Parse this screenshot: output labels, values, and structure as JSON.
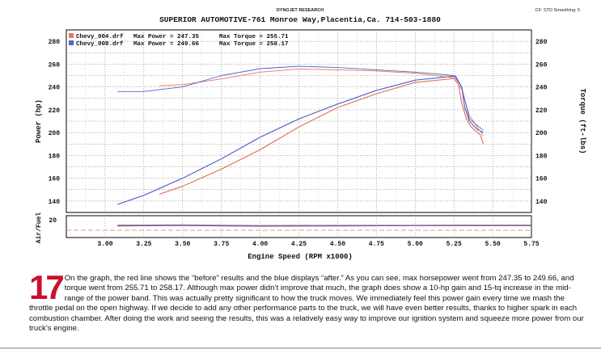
{
  "header": {
    "small_title": "DYNOJET RESEARCH",
    "right_info": "CF: STD   Smoothing: 5",
    "title": "SUPERIOR AUTOMOTIVE-761 Monroe Way,Placentia,Ca. 714-503-1880"
  },
  "legend": [
    {
      "file": "Chevy_004.drf",
      "power_label": "Max Power = 247.35",
      "torque_label": "Max Torque = 255.71",
      "color": "#e07a5f"
    },
    {
      "file": "Chevy_008.drf",
      "power_label": "Max Power = 249.66",
      "torque_label": "Max Torque = 258.17",
      "color": "#5a63c8"
    }
  ],
  "caption": {
    "number": "17",
    "text": "On the graph, the red line shows the “before” results and the blue displays “after.” As you can see, max horsepower went from 247.35 to 249.66, and torque went from 255.71 to 258.17. Although max power didn’t improve that much, the graph does show a 10-hp gain and 15-tq increase in the mid-range of the power band. This was actually pretty significant to how the truck moves. We immediately feel this power gain every time we mash the throttle pedal on the open highway. If we decide to add any other performance parts to the truck, we will have even better results, thanks to higher spark in each combustion chamber. After doing the work and seeing the results, this was a relatively easy way to improve our ignition system and squeeze more power from our truck’s engine."
  },
  "chart_data": {
    "type": "line",
    "xlabel": "Engine Speed (RPM x1000)",
    "ylabel_left": "Power (hp)",
    "ylabel_right": "Torque (ft-lbs)",
    "airfuel_label": "Air/Fuel",
    "airfuel_tick": "20",
    "xlim": [
      2.75,
      5.75
    ],
    "ylim": [
      130,
      290
    ],
    "x_ticks": [
      "3.00",
      "3.25",
      "3.50",
      "3.75",
      "4.00",
      "4.25",
      "4.50",
      "4.75",
      "5.00",
      "5.25",
      "5.50",
      "5.75"
    ],
    "y_ticks": [
      "140",
      "160",
      "180",
      "200",
      "220",
      "240",
      "260",
      "280"
    ],
    "grid": true,
    "series": [
      {
        "name": "Chevy_004.drf",
        "measure": "power",
        "color": "#e07a5f",
        "x": [
          3.35,
          3.5,
          3.75,
          4.0,
          4.25,
          4.5,
          4.75,
          5.0,
          5.15,
          5.25,
          5.28,
          5.3,
          5.33,
          5.36,
          5.42,
          5.44
        ],
        "y": [
          146,
          153,
          168,
          185,
          205,
          222,
          234,
          244,
          246,
          247.35,
          242,
          226,
          212,
          205,
          198,
          190
        ]
      },
      {
        "name": "Chevy_008.drf",
        "measure": "power",
        "color": "#5a63c8",
        "x": [
          3.08,
          3.25,
          3.5,
          3.75,
          4.0,
          4.25,
          4.5,
          4.75,
          5.0,
          5.15,
          5.26,
          5.3,
          5.32,
          5.35,
          5.4,
          5.44
        ],
        "y": [
          137,
          145,
          160,
          177,
          196,
          212,
          225,
          237,
          246,
          248,
          249.66,
          240,
          222,
          210,
          203,
          200
        ]
      },
      {
        "name": "Chevy_004.drf",
        "measure": "torque",
        "color": "#e07a5f",
        "x": [
          3.35,
          3.5,
          3.75,
          4.0,
          4.25,
          4.5,
          4.75,
          5.0,
          5.25,
          5.3,
          5.35,
          5.44
        ],
        "y": [
          241,
          242,
          247,
          253,
          255.71,
          255,
          254,
          252,
          248,
          238,
          215,
          197
        ]
      },
      {
        "name": "Chevy_008.drf",
        "measure": "torque",
        "color": "#5a63c8",
        "x": [
          3.08,
          3.25,
          3.5,
          3.75,
          4.0,
          4.25,
          4.5,
          4.75,
          5.0,
          5.25,
          5.3,
          5.35,
          5.44
        ],
        "y": [
          236,
          236,
          240,
          250,
          256,
          258.17,
          257,
          255,
          253,
          250,
          240,
          212,
          202
        ]
      },
      {
        "name": "Chevy_004.drf",
        "measure": "air_fuel",
        "color": "#e07a5f",
        "x": [
          3.08,
          3.5,
          4.0,
          4.5,
          5.0,
          5.25,
          5.75
        ],
        "y": [
          12.8,
          12.9,
          12.6,
          12.7,
          12.7,
          12.8,
          12.8
        ]
      },
      {
        "name": "Chevy_008.drf",
        "measure": "air_fuel",
        "color": "#5a63c8",
        "x": [
          3.08,
          3.5,
          4.0,
          4.5,
          5.0,
          5.25,
          5.75
        ],
        "y": [
          12.4,
          12.6,
          12.2,
          12.4,
          12.5,
          12.5,
          12.5
        ]
      }
    ]
  }
}
